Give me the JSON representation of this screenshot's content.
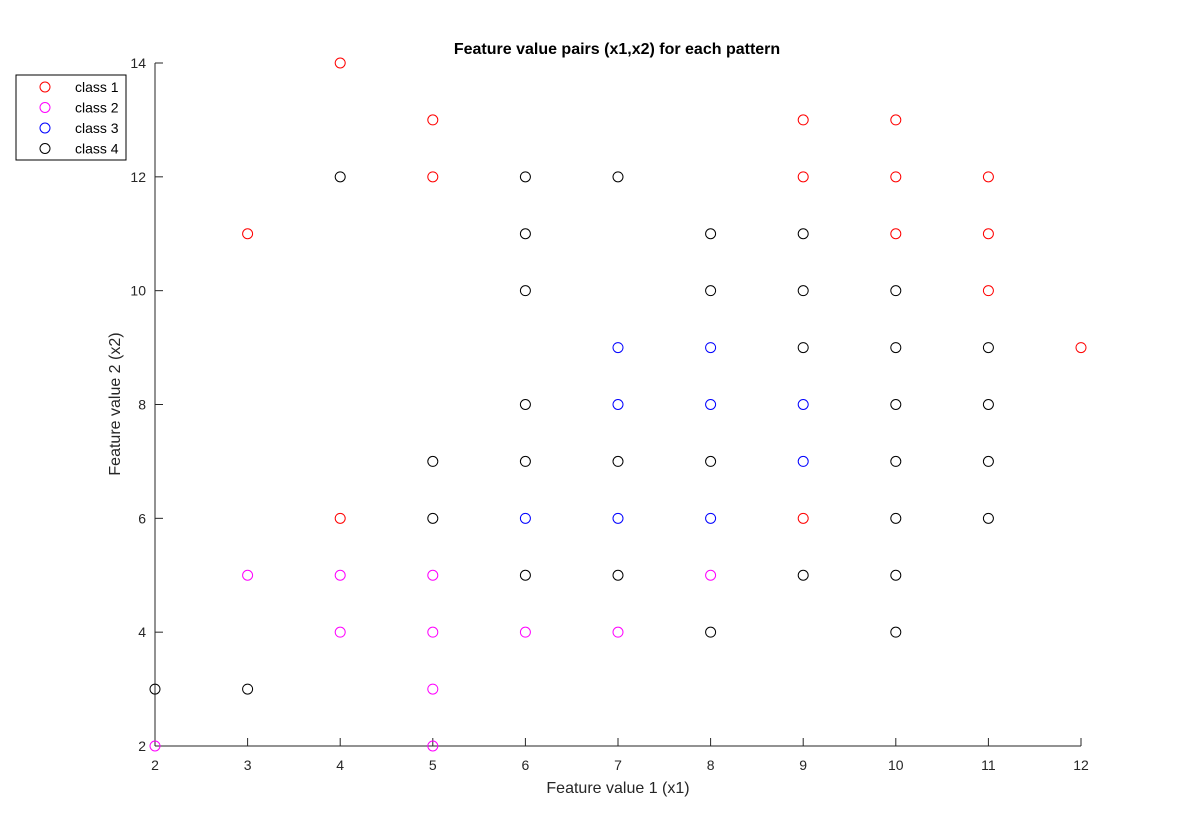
{
  "colors": {
    "class_1": "#ff0000",
    "class_2": "#ff00ff",
    "class_3": "#0000ff",
    "class_4": "#000000",
    "axis": "#262626"
  },
  "chart_data": {
    "type": "scatter",
    "title": "Feature value pairs (x1,x2) for each pattern",
    "xlabel": "Feature value 1 (x1)",
    "ylabel": "Feature value 2 (x2)",
    "xlim": [
      2,
      12
    ],
    "ylim": [
      2,
      14
    ],
    "xticks": [
      "2",
      "3",
      "4",
      "5",
      "6",
      "7",
      "8",
      "9",
      "10",
      "11",
      "12"
    ],
    "yticks": [
      "2",
      "4",
      "6",
      "8",
      "10",
      "12",
      "14"
    ],
    "grid": false,
    "legend_position": "outside-top-left",
    "marker": "open-circle",
    "series": [
      {
        "name": "class 1",
        "color": "#ff0000",
        "points": [
          [
            3,
            11
          ],
          [
            4,
            14
          ],
          [
            4,
            6
          ],
          [
            5,
            13
          ],
          [
            5,
            12
          ],
          [
            9,
            13
          ],
          [
            9,
            12
          ],
          [
            9,
            6
          ],
          [
            10,
            13
          ],
          [
            10,
            12
          ],
          [
            10,
            11
          ],
          [
            11,
            12
          ],
          [
            11,
            11
          ],
          [
            11,
            10
          ],
          [
            12,
            9
          ]
        ]
      },
      {
        "name": "class 2",
        "color": "#ff00ff",
        "points": [
          [
            2,
            2
          ],
          [
            3,
            5
          ],
          [
            4,
            5
          ],
          [
            4,
            4
          ],
          [
            5,
            5
          ],
          [
            5,
            4
          ],
          [
            5,
            3
          ],
          [
            5,
            2
          ],
          [
            6,
            4
          ],
          [
            7,
            4
          ],
          [
            8,
            5
          ]
        ]
      },
      {
        "name": "class 3",
        "color": "#0000ff",
        "points": [
          [
            6,
            6
          ],
          [
            7,
            9
          ],
          [
            7,
            8
          ],
          [
            7,
            6
          ],
          [
            8,
            9
          ],
          [
            8,
            8
          ],
          [
            8,
            6
          ],
          [
            9,
            8
          ],
          [
            9,
            7
          ]
        ]
      },
      {
        "name": "class 4",
        "color": "#000000",
        "points": [
          [
            2,
            3
          ],
          [
            3,
            3
          ],
          [
            4,
            12
          ],
          [
            5,
            7
          ],
          [
            5,
            6
          ],
          [
            6,
            12
          ],
          [
            6,
            11
          ],
          [
            6,
            10
          ],
          [
            6,
            8
          ],
          [
            6,
            7
          ],
          [
            6,
            5
          ],
          [
            7,
            12
          ],
          [
            7,
            7
          ],
          [
            7,
            5
          ],
          [
            8,
            11
          ],
          [
            8,
            10
          ],
          [
            8,
            7
          ],
          [
            8,
            4
          ],
          [
            9,
            11
          ],
          [
            9,
            10
          ],
          [
            9,
            9
          ],
          [
            9,
            5
          ],
          [
            10,
            10
          ],
          [
            10,
            9
          ],
          [
            10,
            8
          ],
          [
            10,
            7
          ],
          [
            10,
            6
          ],
          [
            10,
            5
          ],
          [
            10,
            4
          ],
          [
            11,
            9
          ],
          [
            11,
            8
          ],
          [
            11,
            7
          ],
          [
            11,
            6
          ]
        ]
      }
    ]
  }
}
